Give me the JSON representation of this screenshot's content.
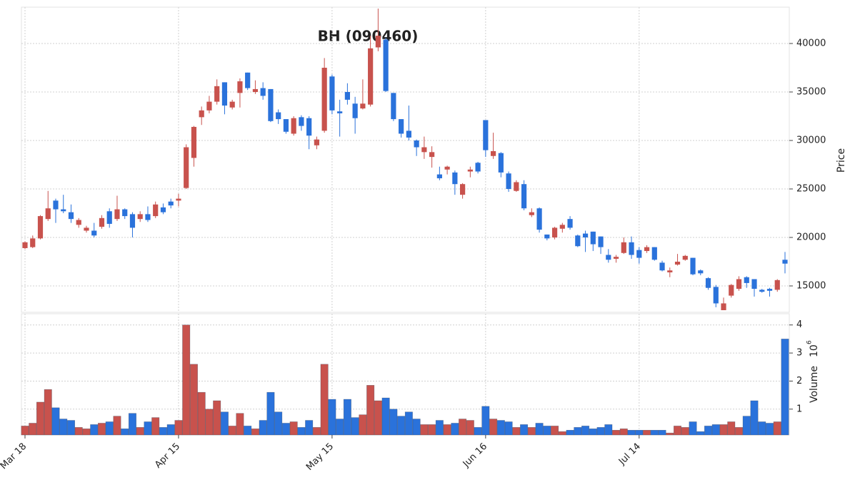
{
  "chart_data": {
    "type": "candlestick",
    "title": "BH (090460)",
    "y_label": "Price",
    "volume_label": "Volume",
    "volume_multiplier_base": "10",
    "volume_multiplier_exponent": "6",
    "up_color": "#c8524d",
    "down_color": "#2a72db",
    "grid": true,
    "categories": [
      "Mar 18",
      null,
      null,
      null,
      null,
      null,
      null,
      null,
      null,
      null,
      null,
      null,
      null,
      null,
      null,
      null,
      null,
      null,
      null,
      null,
      "Apr 15",
      null,
      null,
      null,
      null,
      null,
      null,
      null,
      null,
      null,
      null,
      null,
      null,
      null,
      null,
      null,
      null,
      null,
      null,
      null,
      "May 15",
      null,
      null,
      null,
      null,
      null,
      null,
      null,
      null,
      null,
      null,
      null,
      null,
      null,
      null,
      null,
      null,
      null,
      null,
      null,
      "Jun 16",
      null,
      null,
      null,
      null,
      null,
      null,
      null,
      null,
      null,
      null,
      null,
      null,
      null,
      null,
      null,
      null,
      null,
      null,
      null,
      "Jul 14",
      null,
      null,
      null,
      null,
      null,
      null,
      null,
      null,
      null,
      null,
      null,
      null,
      null,
      null,
      null,
      null,
      null,
      null,
      null
    ],
    "open": [
      18900,
      19000,
      19900,
      21900,
      23800,
      22900,
      22600,
      21300,
      20700,
      20700,
      21100,
      22700,
      21900,
      22900,
      22400,
      21900,
      22400,
      22200,
      23100,
      23700,
      23800,
      25100,
      28200,
      32400,
      33100,
      34000,
      36000,
      33400,
      34900,
      37000,
      35000,
      35400,
      35300,
      32900,
      32200,
      30700,
      32400,
      32300,
      29500,
      31000,
      36600,
      33000,
      35000,
      33800,
      33300,
      33700,
      39600,
      40400,
      34900,
      32200,
      31000,
      30000,
      28800,
      28300,
      26500,
      27000,
      26700,
      24400,
      26800,
      27700,
      32100,
      28400,
      28700,
      26600,
      24800,
      25500,
      22300,
      23000,
      20300,
      20000,
      20900,
      21900,
      20200,
      20400,
      20600,
      20100,
      18200,
      17800,
      18400,
      19500,
      18700,
      18600,
      19000,
      17400,
      16400,
      17200,
      17700,
      17900,
      16600,
      15800,
      14900,
      12500,
      14000,
      14700,
      15900,
      15700,
      14600,
      14700,
      14600,
      17700
    ],
    "high": [
      19600,
      20200,
      22300,
      24800,
      24000,
      24400,
      23400,
      22000,
      21200,
      21500,
      22300,
      23000,
      24300,
      23000,
      22600,
      22700,
      23200,
      23700,
      23500,
      24000,
      24500,
      29600,
      31500,
      33500,
      34600,
      36300,
      36000,
      34200,
      36400,
      37000,
      36200,
      36000,
      35300,
      33200,
      32200,
      32500,
      32600,
      32500,
      30400,
      38500,
      36800,
      34200,
      35900,
      34500,
      36300,
      40800,
      43600,
      40600,
      34900,
      32200,
      33600,
      30100,
      30400,
      29400,
      27300,
      27400,
      26900,
      25600,
      27300,
      27800,
      32100,
      30800,
      28800,
      26800,
      25900,
      25900,
      23000,
      23100,
      20300,
      21100,
      21500,
      22200,
      20300,
      20700,
      20600,
      20100,
      18800,
      18200,
      20000,
      20100,
      19000,
      19200,
      19000,
      17600,
      16900,
      18300,
      18200,
      17900,
      16700,
      15900,
      15100,
      13800,
      15200,
      16000,
      16000,
      15700,
      14700,
      14800,
      15700,
      18500
    ],
    "low": [
      18800,
      18900,
      19800,
      21700,
      21500,
      22500,
      21500,
      21000,
      20500,
      20000,
      20900,
      21000,
      21700,
      21900,
      20000,
      21600,
      21600,
      22000,
      22400,
      23000,
      23200,
      25000,
      27300,
      31600,
      32800,
      33700,
      32700,
      33200,
      33400,
      35200,
      34800,
      34200,
      31900,
      31700,
      30700,
      30500,
      31000,
      29100,
      29100,
      30800,
      32700,
      30400,
      33700,
      30700,
      33200,
      33500,
      39200,
      35000,
      32000,
      30300,
      30000,
      28400,
      28100,
      27200,
      25900,
      26500,
      24400,
      24000,
      26200,
      26600,
      28300,
      28100,
      26200,
      24700,
      24700,
      22800,
      22100,
      20500,
      19700,
      19800,
      20500,
      20800,
      19000,
      18500,
      18600,
      18300,
      17400,
      17400,
      18300,
      17800,
      17300,
      18400,
      17600,
      16500,
      15900,
      17100,
      17600,
      16100,
      16100,
      14600,
      12800,
      12500,
      13800,
      14500,
      14800,
      13900,
      14300,
      13900,
      14400,
      16300
    ],
    "close": [
      19500,
      19900,
      22200,
      23000,
      22900,
      22700,
      21900,
      21800,
      21000,
      20200,
      22000,
      21400,
      22900,
      22200,
      21000,
      22400,
      21800,
      23400,
      22600,
      23300,
      24000,
      29300,
      31400,
      33100,
      34000,
      35600,
      33600,
      34000,
      36100,
      35400,
      35300,
      34600,
      32000,
      32200,
      30900,
      32300,
      31500,
      30500,
      30100,
      37500,
      33100,
      32800,
      34200,
      32300,
      33800,
      39500,
      40800,
      35100,
      32200,
      30700,
      30300,
      29300,
      29300,
      28800,
      26100,
      27300,
      25500,
      25500,
      27000,
      26800,
      29000,
      28900,
      26700,
      25000,
      25700,
      23000,
      22600,
      20800,
      19900,
      21000,
      21300,
      21000,
      19100,
      20000,
      19300,
      19000,
      17700,
      18000,
      19500,
      18200,
      17900,
      19000,
      17700,
      16600,
      16600,
      17500,
      18100,
      16200,
      16300,
      14800,
      13200,
      13200,
      15100,
      15700,
      15300,
      14700,
      14400,
      14500,
      15600,
      17300
    ],
    "volume": [
      0.4,
      0.5,
      1.25,
      1.7,
      1.05,
      0.65,
      0.6,
      0.35,
      0.3,
      0.45,
      0.5,
      0.55,
      0.75,
      0.3,
      0.85,
      0.35,
      0.55,
      0.7,
      0.35,
      0.45,
      0.6,
      4.0,
      2.6,
      1.6,
      1.0,
      1.3,
      0.9,
      0.4,
      0.85,
      0.4,
      0.3,
      0.6,
      1.6,
      0.9,
      0.5,
      0.55,
      0.35,
      0.6,
      0.35,
      2.6,
      1.35,
      0.65,
      1.35,
      0.7,
      0.8,
      1.85,
      1.3,
      1.4,
      1.0,
      0.75,
      0.9,
      0.65,
      0.45,
      0.45,
      0.6,
      0.45,
      0.5,
      0.65,
      0.6,
      0.35,
      1.1,
      0.65,
      0.6,
      0.55,
      0.35,
      0.45,
      0.35,
      0.5,
      0.4,
      0.4,
      0.2,
      0.25,
      0.35,
      0.4,
      0.3,
      0.35,
      0.45,
      0.25,
      0.3,
      0.25,
      0.25,
      0.25,
      0.25,
      0.25,
      0.15,
      0.4,
      0.35,
      0.55,
      0.2,
      0.4,
      0.45,
      0.45,
      0.55,
      0.35,
      0.75,
      1.3,
      0.55,
      0.5,
      0.55,
      3.5
    ],
    "ylim": [
      12280,
      43750
    ],
    "yticks": [
      15000,
      20000,
      25000,
      30000,
      35000,
      40000
    ],
    "volume_ylim": [
      0.08,
      4.4
    ],
    "volume_yticks": [
      1,
      2,
      3,
      4
    ]
  }
}
